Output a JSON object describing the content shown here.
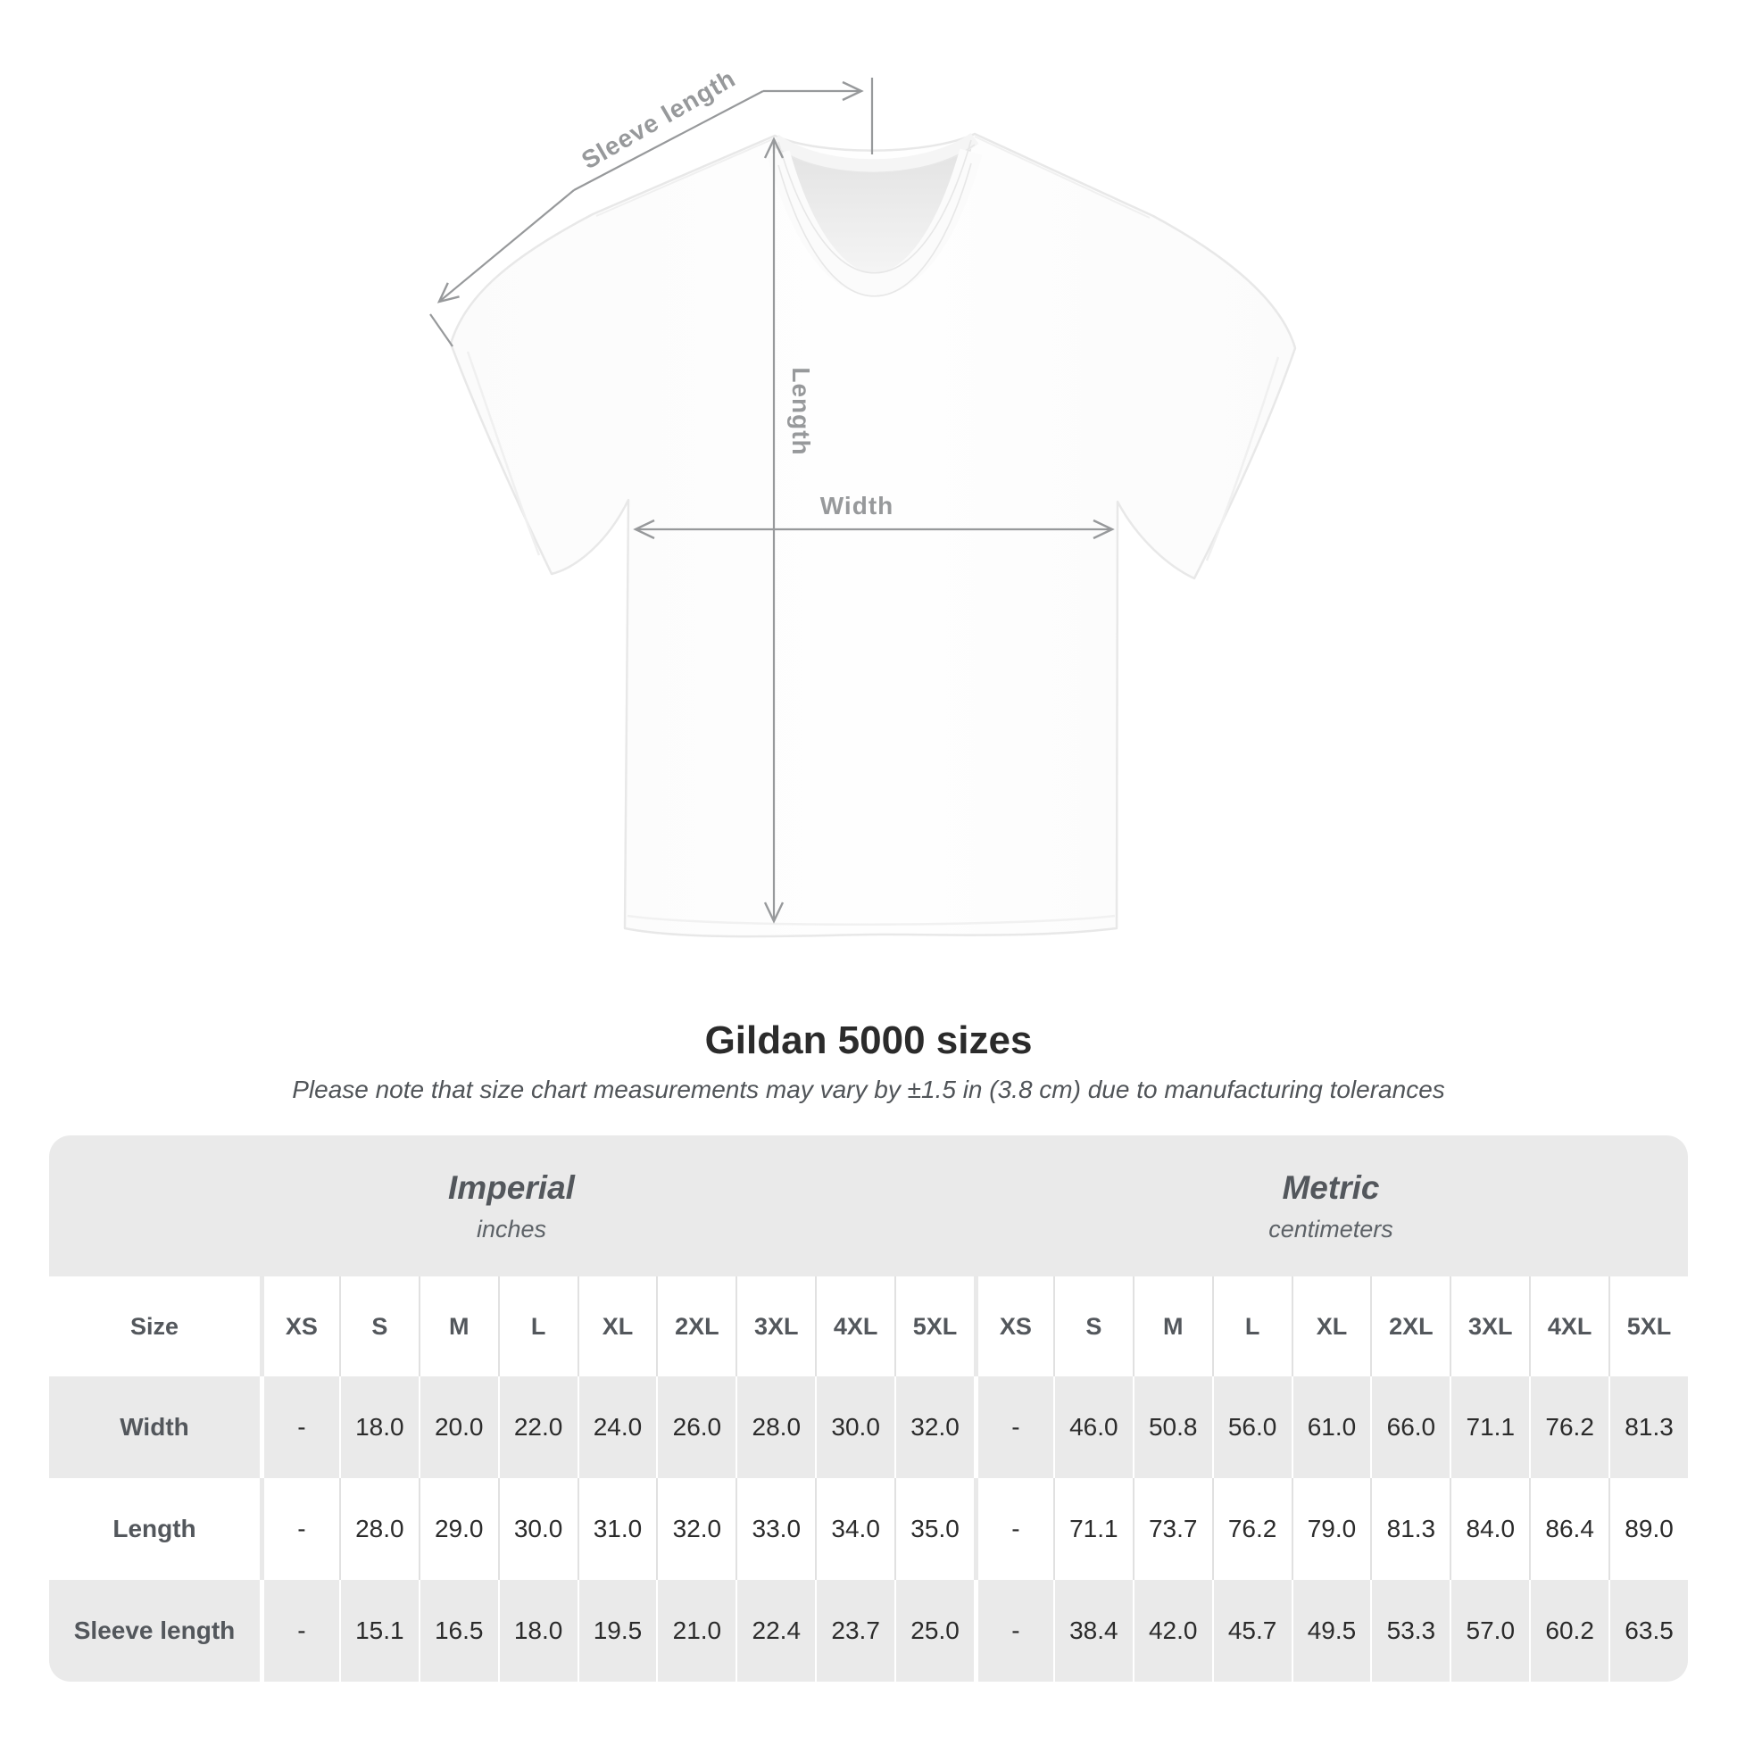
{
  "diagram": {
    "labels": {
      "sleeve_length": "Sleeve length",
      "length": "Length",
      "width": "Width"
    }
  },
  "title": "Gildan 5000 sizes",
  "subtitle": "Please note that size chart measurements may vary by ±1.5 in (3.8 cm) due to manufacturing tolerances",
  "table": {
    "sections": [
      {
        "label": "Imperial",
        "sublabel": "inches"
      },
      {
        "label": "Metric",
        "sublabel": "centimeters"
      }
    ],
    "size_header": "Size",
    "sizes": [
      "XS",
      "S",
      "M",
      "L",
      "XL",
      "2XL",
      "3XL",
      "4XL",
      "5XL"
    ],
    "rows": [
      {
        "label": "Width",
        "imperial": [
          "-",
          "18.0",
          "20.0",
          "22.0",
          "24.0",
          "26.0",
          "28.0",
          "30.0",
          "32.0"
        ],
        "metric": [
          "-",
          "46.0",
          "50.8",
          "56.0",
          "61.0",
          "66.0",
          "71.1",
          "76.2",
          "81.3"
        ]
      },
      {
        "label": "Length",
        "imperial": [
          "-",
          "28.0",
          "29.0",
          "30.0",
          "31.0",
          "32.0",
          "33.0",
          "34.0",
          "35.0"
        ],
        "metric": [
          "-",
          "71.1",
          "73.7",
          "76.2",
          "79.0",
          "81.3",
          "84.0",
          "86.4",
          "89.0"
        ]
      },
      {
        "label": "Sleeve length",
        "imperial": [
          "-",
          "15.1",
          "16.5",
          "18.0",
          "19.5",
          "21.0",
          "22.4",
          "23.7",
          "25.0"
        ],
        "metric": [
          "-",
          "38.4",
          "42.0",
          "45.7",
          "49.5",
          "53.3",
          "57.0",
          "60.2",
          "63.5"
        ]
      }
    ]
  },
  "colors": {
    "stripe_gray": "#eaeaea",
    "separator_on_white": "#e1e1e1",
    "separator_on_gray": "#ffffff",
    "annotation_gray": "#97999b",
    "title_text": "#2b2b2b",
    "table_text_dark": "#2b2b2b",
    "table_text_gray": "#53575c",
    "shirt_outline": "#e8e8e8"
  }
}
